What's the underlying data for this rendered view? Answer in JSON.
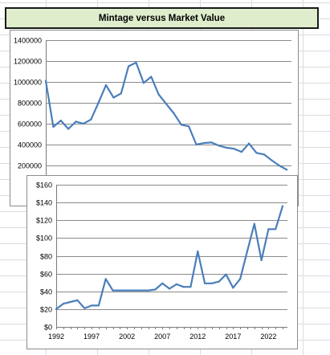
{
  "header": {
    "title": "Mintage versus Market Value"
  },
  "colors": {
    "line": "#4a7ebb",
    "title_bg": "#dfedcc"
  },
  "chart_data": [
    {
      "type": "line",
      "title": "",
      "xlabel": "",
      "ylabel": "",
      "ylim": [
        100000,
        1400000
      ],
      "yticks": [
        "1400000",
        "1200000",
        "1000000",
        "800000",
        "600000",
        "400000",
        "200000"
      ],
      "ytick_values": [
        1400000,
        1200000,
        1000000,
        800000,
        600000,
        400000,
        200000
      ],
      "x": [
        1992,
        1993,
        1994,
        1995,
        1996,
        1997,
        1998,
        1999,
        2000,
        2001,
        2002,
        2003,
        2004,
        2005,
        2006,
        2007,
        2008,
        2009,
        2010,
        2011,
        2012,
        2013,
        2014,
        2015,
        2016,
        2017,
        2018,
        2019,
        2020,
        2021,
        2022,
        2023,
        2024
      ],
      "series": [
        {
          "values": [
            1010000,
            570000,
            630000,
            550000,
            620000,
            600000,
            640000,
            800000,
            970000,
            850000,
            890000,
            1150000,
            1185000,
            990000,
            1050000,
            880000,
            790000,
            700000,
            590000,
            575000,
            400000,
            415000,
            420000,
            390000,
            370000,
            360000,
            330000,
            410000,
            320000,
            305000,
            250000,
            200000,
            160000
          ]
        }
      ],
      "grid": true,
      "legend": "none"
    },
    {
      "type": "line",
      "title": "",
      "xlabel": "",
      "ylabel": "",
      "ylim": [
        0,
        160
      ],
      "yticks": [
        "$160",
        "$140",
        "$120",
        "$100",
        "$80",
        "$60",
        "$40",
        "$20",
        "$0"
      ],
      "ytick_values": [
        160,
        140,
        120,
        100,
        80,
        60,
        40,
        20,
        0
      ],
      "xticks": [
        "1992",
        "1997",
        "2002",
        "2007",
        "2012",
        "2017",
        "2022"
      ],
      "x": [
        1992,
        1993,
        1994,
        1995,
        1996,
        1997,
        1998,
        1999,
        2000,
        2001,
        2002,
        2003,
        2004,
        2005,
        2006,
        2007,
        2008,
        2009,
        2010,
        2011,
        2012,
        2013,
        2014,
        2015,
        2016,
        2017,
        2018,
        2019,
        2020,
        2021,
        2022,
        2023,
        2024
      ],
      "series": [
        {
          "values": [
            20,
            26,
            28,
            30,
            21,
            24,
            24,
            54,
            41,
            41,
            41,
            41,
            41,
            41,
            42,
            49,
            43,
            48,
            45,
            45,
            85,
            49,
            49,
            51,
            59,
            44,
            54,
            85,
            116,
            75,
            110,
            110,
            136
          ]
        }
      ],
      "grid": true,
      "legend": "none"
    }
  ]
}
